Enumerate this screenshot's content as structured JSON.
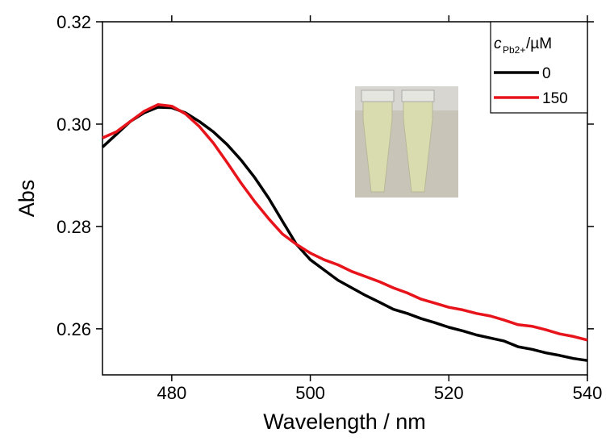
{
  "chart_data": {
    "type": "line",
    "xlabel": "Wavelength / nm",
    "ylabel": "Abs",
    "legend_title": {
      "symbol": "c",
      "subscript": "Pb2+",
      "unit": "/µM"
    },
    "legend_position": "upper right",
    "x": [
      470,
      472,
      474,
      476,
      478,
      480,
      482,
      484,
      486,
      488,
      490,
      492,
      494,
      496,
      498,
      500,
      502,
      504,
      506,
      508,
      510,
      512,
      514,
      516,
      518,
      520,
      522,
      524,
      526,
      528,
      530,
      532,
      534,
      536,
      538,
      540
    ],
    "series": [
      {
        "name": "0",
        "color": "#000000",
        "values": [
          0.2955,
          0.298,
          0.3005,
          0.3022,
          0.3033,
          0.3032,
          0.3022,
          0.3005,
          0.2985,
          0.296,
          0.293,
          0.2895,
          0.2855,
          0.281,
          0.2765,
          0.2735,
          0.2715,
          0.2695,
          0.268,
          0.2665,
          0.2652,
          0.2638,
          0.263,
          0.262,
          0.2612,
          0.2603,
          0.2596,
          0.2588,
          0.2582,
          0.2576,
          0.2565,
          0.256,
          0.2553,
          0.2548,
          0.2542,
          0.2538
        ]
      },
      {
        "name": "150",
        "color": "#e8141b",
        "values": [
          0.2973,
          0.2985,
          0.3005,
          0.3025,
          0.3038,
          0.3035,
          0.302,
          0.2995,
          0.2963,
          0.2925,
          0.2885,
          0.2848,
          0.2815,
          0.2785,
          0.2765,
          0.2748,
          0.2735,
          0.2725,
          0.2712,
          0.2702,
          0.2692,
          0.268,
          0.267,
          0.2658,
          0.265,
          0.2642,
          0.2637,
          0.263,
          0.2625,
          0.2617,
          0.2608,
          0.2605,
          0.2598,
          0.259,
          0.2585,
          0.2578
        ]
      }
    ],
    "xlim": [
      470,
      540
    ],
    "xticks": [
      480,
      500,
      520,
      540
    ],
    "ylim": [
      0.251,
      0.32
    ],
    "yticks": [
      0.26,
      0.28,
      {
        "value": 0.3,
        "label": "0.30"
      },
      0.32
    ]
  }
}
